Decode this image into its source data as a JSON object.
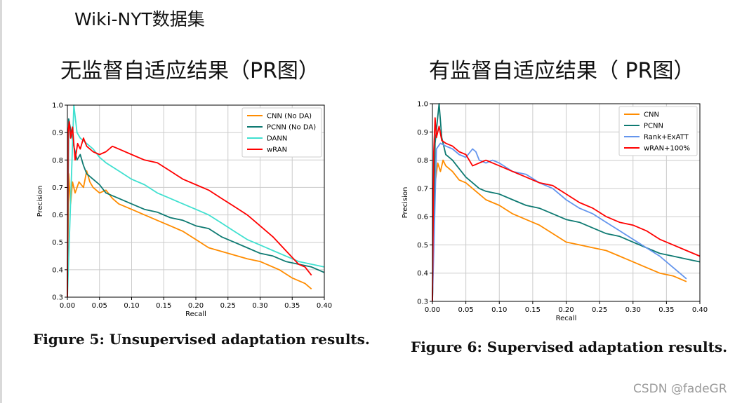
{
  "header": {
    "title": "Wiki-NYT数据集"
  },
  "panels": {
    "left_title": "无监督自适应结果（PR图）",
    "right_title": "有监督自适应结果（ PR图）",
    "left_caption": "Figure 5: Unsupervised adaptation results.",
    "right_caption": "Figure 6: Supervised adaptation results."
  },
  "watermark": "CSDN @fadeGR",
  "chart_data": [
    {
      "type": "line",
      "xlabel": "Recall",
      "ylabel": "Precision",
      "xlim": [
        0,
        0.4
      ],
      "ylim": [
        0.3,
        1.0
      ],
      "xticks": [
        "0.00",
        "0.05",
        "0.10",
        "0.15",
        "0.20",
        "0.25",
        "0.30",
        "0.35",
        "0.40"
      ],
      "yticks": [
        "0.3",
        "0.4",
        "0.5",
        "0.6",
        "0.7",
        "0.8",
        "0.9",
        "1.0"
      ],
      "grid": true,
      "legend": "top-right",
      "series": [
        {
          "name": "CNN (No DA)",
          "color": "#ff8c00",
          "points": [
            [
              0,
              0.3
            ],
            [
              0.002,
              0.75
            ],
            [
              0.005,
              0.64
            ],
            [
              0.008,
              0.72
            ],
            [
              0.012,
              0.68
            ],
            [
              0.018,
              0.72
            ],
            [
              0.025,
              0.7
            ],
            [
              0.03,
              0.76
            ],
            [
              0.035,
              0.72
            ],
            [
              0.04,
              0.7
            ],
            [
              0.05,
              0.68
            ],
            [
              0.06,
              0.69
            ],
            [
              0.07,
              0.66
            ],
            [
              0.08,
              0.64
            ],
            [
              0.1,
              0.62
            ],
            [
              0.12,
              0.6
            ],
            [
              0.14,
              0.58
            ],
            [
              0.16,
              0.56
            ],
            [
              0.18,
              0.54
            ],
            [
              0.2,
              0.51
            ],
            [
              0.22,
              0.48
            ],
            [
              0.25,
              0.46
            ],
            [
              0.28,
              0.44
            ],
            [
              0.3,
              0.43
            ],
            [
              0.33,
              0.4
            ],
            [
              0.35,
              0.37
            ],
            [
              0.37,
              0.35
            ],
            [
              0.38,
              0.33
            ]
          ]
        },
        {
          "name": "PCNN (No DA)",
          "color": "#0e7a72",
          "points": [
            [
              0,
              0.3
            ],
            [
              0.002,
              0.95
            ],
            [
              0.01,
              0.85
            ],
            [
              0.015,
              0.8
            ],
            [
              0.02,
              0.82
            ],
            [
              0.025,
              0.78
            ],
            [
              0.03,
              0.75
            ],
            [
              0.04,
              0.73
            ],
            [
              0.05,
              0.71
            ],
            [
              0.06,
              0.68
            ],
            [
              0.08,
              0.66
            ],
            [
              0.1,
              0.64
            ],
            [
              0.12,
              0.62
            ],
            [
              0.14,
              0.61
            ],
            [
              0.16,
              0.59
            ],
            [
              0.18,
              0.58
            ],
            [
              0.2,
              0.56
            ],
            [
              0.22,
              0.55
            ],
            [
              0.24,
              0.52
            ],
            [
              0.26,
              0.5
            ],
            [
              0.28,
              0.48
            ],
            [
              0.3,
              0.46
            ],
            [
              0.32,
              0.45
            ],
            [
              0.34,
              0.43
            ],
            [
              0.36,
              0.42
            ],
            [
              0.38,
              0.41
            ],
            [
              0.4,
              0.39
            ]
          ]
        },
        {
          "name": "DANN",
          "color": "#40e0d0",
          "points": [
            [
              0,
              0.3
            ],
            [
              0.01,
              1.0
            ],
            [
              0.015,
              0.9
            ],
            [
              0.02,
              0.88
            ],
            [
              0.03,
              0.86
            ],
            [
              0.04,
              0.84
            ],
            [
              0.05,
              0.81
            ],
            [
              0.06,
              0.79
            ],
            [
              0.08,
              0.76
            ],
            [
              0.1,
              0.73
            ],
            [
              0.12,
              0.71
            ],
            [
              0.14,
              0.68
            ],
            [
              0.16,
              0.66
            ],
            [
              0.18,
              0.64
            ],
            [
              0.2,
              0.62
            ],
            [
              0.22,
              0.6
            ],
            [
              0.24,
              0.57
            ],
            [
              0.26,
              0.54
            ],
            [
              0.28,
              0.51
            ],
            [
              0.3,
              0.49
            ],
            [
              0.32,
              0.47
            ],
            [
              0.34,
              0.45
            ],
            [
              0.36,
              0.43
            ],
            [
              0.38,
              0.42
            ],
            [
              0.4,
              0.41
            ]
          ]
        },
        {
          "name": "wRAN",
          "color": "#ff0000",
          "points": [
            [
              0,
              0.3
            ],
            [
              0.001,
              0.9
            ],
            [
              0.003,
              0.94
            ],
            [
              0.005,
              0.88
            ],
            [
              0.008,
              0.92
            ],
            [
              0.012,
              0.8
            ],
            [
              0.016,
              0.86
            ],
            [
              0.02,
              0.84
            ],
            [
              0.025,
              0.88
            ],
            [
              0.03,
              0.85
            ],
            [
              0.04,
              0.83
            ],
            [
              0.05,
              0.82
            ],
            [
              0.06,
              0.83
            ],
            [
              0.07,
              0.85
            ],
            [
              0.08,
              0.84
            ],
            [
              0.1,
              0.82
            ],
            [
              0.12,
              0.8
            ],
            [
              0.14,
              0.79
            ],
            [
              0.16,
              0.76
            ],
            [
              0.18,
              0.73
            ],
            [
              0.2,
              0.71
            ],
            [
              0.22,
              0.69
            ],
            [
              0.24,
              0.66
            ],
            [
              0.26,
              0.63
            ],
            [
              0.28,
              0.6
            ],
            [
              0.3,
              0.56
            ],
            [
              0.32,
              0.52
            ],
            [
              0.34,
              0.47
            ],
            [
              0.36,
              0.42
            ],
            [
              0.37,
              0.41
            ],
            [
              0.38,
              0.38
            ]
          ]
        }
      ]
    },
    {
      "type": "line",
      "xlabel": "Recall",
      "ylabel": "Precision",
      "xlim": [
        0,
        0.4
      ],
      "ylim": [
        0.3,
        1.0
      ],
      "xticks": [
        "0.00",
        "0.05",
        "0.10",
        "0.15",
        "0.20",
        "0.25",
        "0.30",
        "0.35",
        "0.40"
      ],
      "yticks": [
        "0.3",
        "0.4",
        "0.5",
        "0.6",
        "0.7",
        "0.8",
        "0.9",
        "1.0"
      ],
      "grid": true,
      "legend": "top-right",
      "series": [
        {
          "name": "CNN",
          "color": "#ff8c00",
          "points": [
            [
              0,
              0.3
            ],
            [
              0.003,
              0.7
            ],
            [
              0.008,
              0.79
            ],
            [
              0.012,
              0.76
            ],
            [
              0.016,
              0.8
            ],
            [
              0.02,
              0.78
            ],
            [
              0.03,
              0.76
            ],
            [
              0.04,
              0.73
            ],
            [
              0.05,
              0.72
            ],
            [
              0.06,
              0.7
            ],
            [
              0.07,
              0.68
            ],
            [
              0.08,
              0.66
            ],
            [
              0.1,
              0.64
            ],
            [
              0.12,
              0.61
            ],
            [
              0.14,
              0.59
            ],
            [
              0.16,
              0.57
            ],
            [
              0.18,
              0.54
            ],
            [
              0.2,
              0.51
            ],
            [
              0.22,
              0.5
            ],
            [
              0.24,
              0.49
            ],
            [
              0.26,
              0.48
            ],
            [
              0.28,
              0.46
            ],
            [
              0.3,
              0.44
            ],
            [
              0.32,
              0.42
            ],
            [
              0.34,
              0.4
            ],
            [
              0.36,
              0.39
            ],
            [
              0.38,
              0.37
            ]
          ]
        },
        {
          "name": "PCNN",
          "color": "#0e7a72",
          "points": [
            [
              0,
              0.3
            ],
            [
              0.004,
              0.86
            ],
            [
              0.01,
              1.0
            ],
            [
              0.014,
              0.88
            ],
            [
              0.02,
              0.82
            ],
            [
              0.03,
              0.8
            ],
            [
              0.04,
              0.77
            ],
            [
              0.05,
              0.74
            ],
            [
              0.06,
              0.72
            ],
            [
              0.07,
              0.7
            ],
            [
              0.08,
              0.69
            ],
            [
              0.1,
              0.68
            ],
            [
              0.12,
              0.66
            ],
            [
              0.14,
              0.64
            ],
            [
              0.16,
              0.63
            ],
            [
              0.18,
              0.61
            ],
            [
              0.2,
              0.59
            ],
            [
              0.22,
              0.58
            ],
            [
              0.24,
              0.56
            ],
            [
              0.26,
              0.54
            ],
            [
              0.28,
              0.53
            ],
            [
              0.3,
              0.51
            ],
            [
              0.32,
              0.49
            ],
            [
              0.34,
              0.47
            ],
            [
              0.36,
              0.46
            ],
            [
              0.38,
              0.45
            ],
            [
              0.4,
              0.44
            ]
          ]
        },
        {
          "name": "Rank+ExATT",
          "color": "#6495ed",
          "points": [
            [
              0,
              0.3
            ],
            [
              0.006,
              0.84
            ],
            [
              0.012,
              0.86
            ],
            [
              0.02,
              0.85
            ],
            [
              0.03,
              0.84
            ],
            [
              0.04,
              0.82
            ],
            [
              0.05,
              0.81
            ],
            [
              0.06,
              0.84
            ],
            [
              0.065,
              0.83
            ],
            [
              0.07,
              0.8
            ],
            [
              0.08,
              0.79
            ],
            [
              0.09,
              0.8
            ],
            [
              0.1,
              0.79
            ],
            [
              0.12,
              0.76
            ],
            [
              0.14,
              0.75
            ],
            [
              0.16,
              0.72
            ],
            [
              0.18,
              0.7
            ],
            [
              0.2,
              0.66
            ],
            [
              0.22,
              0.63
            ],
            [
              0.24,
              0.61
            ],
            [
              0.26,
              0.58
            ],
            [
              0.28,
              0.55
            ],
            [
              0.3,
              0.52
            ],
            [
              0.32,
              0.49
            ],
            [
              0.34,
              0.46
            ],
            [
              0.36,
              0.42
            ],
            [
              0.38,
              0.38
            ]
          ]
        },
        {
          "name": "wRAN+100%",
          "color": "#ff0000",
          "points": [
            [
              0,
              0.3
            ],
            [
              0.002,
              0.83
            ],
            [
              0.004,
              0.95
            ],
            [
              0.006,
              0.88
            ],
            [
              0.01,
              0.92
            ],
            [
              0.014,
              0.87
            ],
            [
              0.02,
              0.86
            ],
            [
              0.03,
              0.85
            ],
            [
              0.04,
              0.83
            ],
            [
              0.05,
              0.82
            ],
            [
              0.06,
              0.78
            ],
            [
              0.07,
              0.79
            ],
            [
              0.08,
              0.8
            ],
            [
              0.09,
              0.79
            ],
            [
              0.1,
              0.78
            ],
            [
              0.12,
              0.76
            ],
            [
              0.14,
              0.74
            ],
            [
              0.16,
              0.72
            ],
            [
              0.18,
              0.71
            ],
            [
              0.2,
              0.68
            ],
            [
              0.22,
              0.65
            ],
            [
              0.24,
              0.63
            ],
            [
              0.26,
              0.6
            ],
            [
              0.28,
              0.58
            ],
            [
              0.3,
              0.57
            ],
            [
              0.32,
              0.55
            ],
            [
              0.34,
              0.52
            ],
            [
              0.36,
              0.5
            ],
            [
              0.38,
              0.48
            ],
            [
              0.4,
              0.46
            ]
          ]
        }
      ]
    }
  ]
}
